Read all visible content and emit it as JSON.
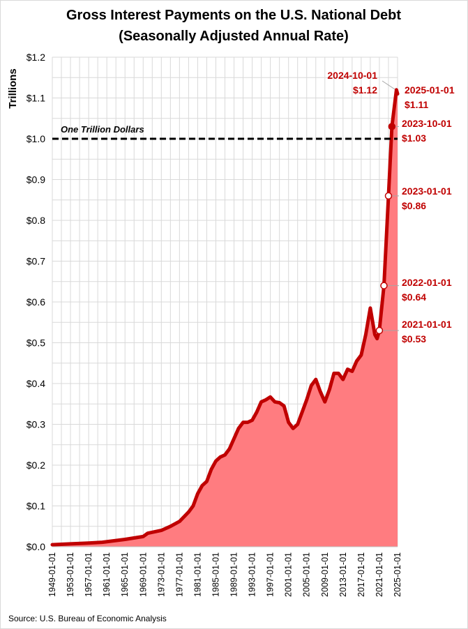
{
  "chart_data": {
    "type": "area",
    "title_line1": "Gross Interest Payments on the U.S. National Debt",
    "title_line2": "(Seasonally Adjusted Annual Rate)",
    "ylabel": "Trillions",
    "xlabel": "",
    "ylim": [
      0,
      1.2
    ],
    "yticks": [
      "$0.0",
      "$0.1",
      "$0.2",
      "$0.3",
      "$0.4",
      "$0.5",
      "$0.6",
      "$0.7",
      "$0.8",
      "$0.9",
      "$1.0",
      "$1.1",
      "$1.2"
    ],
    "xticks": [
      "1949-01-01",
      "1953-01-01",
      "1957-01-01",
      "1961-01-01",
      "1965-01-01",
      "1969-01-01",
      "1973-01-01",
      "1977-01-01",
      "1981-01-01",
      "1985-01-01",
      "1989-01-01",
      "1993-01-01",
      "1997-01-01",
      "2001-01-01",
      "2005-01-01",
      "2009-01-01",
      "2013-01-01",
      "2017-01-01",
      "2021-01-01",
      "2025-01-01"
    ],
    "grid": true,
    "line_color": "#c00000",
    "fill_color": "#ff7c80",
    "reference_line": {
      "value": 1.0,
      "label": "One Trillion Dollars"
    },
    "x": [
      1949,
      1953,
      1957,
      1960,
      1965,
      1969,
      1970,
      1973,
      1975,
      1977,
      1979,
      1980,
      1981,
      1982,
      1983,
      1984,
      1985,
      1986,
      1987,
      1988,
      1989,
      1990,
      1991,
      1992,
      1993,
      1994,
      1995,
      1996,
      1997,
      1998,
      1999,
      2000,
      2001,
      2002,
      2003,
      2004,
      2005,
      2006,
      2007,
      2008,
      2009,
      2010,
      2011,
      2012,
      2013,
      2014,
      2015,
      2016,
      2017,
      2018,
      2019,
      2020,
      2020.5,
      2021,
      2022,
      2023,
      2023.75,
      2024.75,
      2025
    ],
    "values": [
      0.005,
      0.007,
      0.009,
      0.011,
      0.018,
      0.025,
      0.033,
      0.04,
      0.05,
      0.062,
      0.085,
      0.1,
      0.13,
      0.15,
      0.16,
      0.19,
      0.21,
      0.22,
      0.225,
      0.24,
      0.265,
      0.29,
      0.305,
      0.305,
      0.31,
      0.33,
      0.355,
      0.36,
      0.367,
      0.355,
      0.353,
      0.345,
      0.305,
      0.29,
      0.3,
      0.33,
      0.36,
      0.395,
      0.41,
      0.38,
      0.355,
      0.385,
      0.425,
      0.425,
      0.41,
      0.435,
      0.43,
      0.455,
      0.47,
      0.52,
      0.585,
      0.52,
      0.51,
      0.53,
      0.64,
      0.86,
      1.03,
      1.12,
      1.11
    ],
    "annotations": [
      {
        "date": "2024-10-01",
        "value": "$1.12",
        "x": 2024.75,
        "y": 1.12
      },
      {
        "date": "2025-01-01",
        "value": "$1.11",
        "x": 2025,
        "y": 1.11
      },
      {
        "date": "2023-10-01",
        "value": "$1.03",
        "x": 2023.75,
        "y": 1.03
      },
      {
        "date": "2023-01-01",
        "value": "$0.86",
        "x": 2023,
        "y": 0.86
      },
      {
        "date": "2022-01-01",
        "value": "$0.64",
        "x": 2022,
        "y": 0.64
      },
      {
        "date": "2021-01-01",
        "value": "$0.53",
        "x": 2021,
        "y": 0.53
      }
    ],
    "source": "Source: U.S. Bureau of Economic Analysis"
  }
}
